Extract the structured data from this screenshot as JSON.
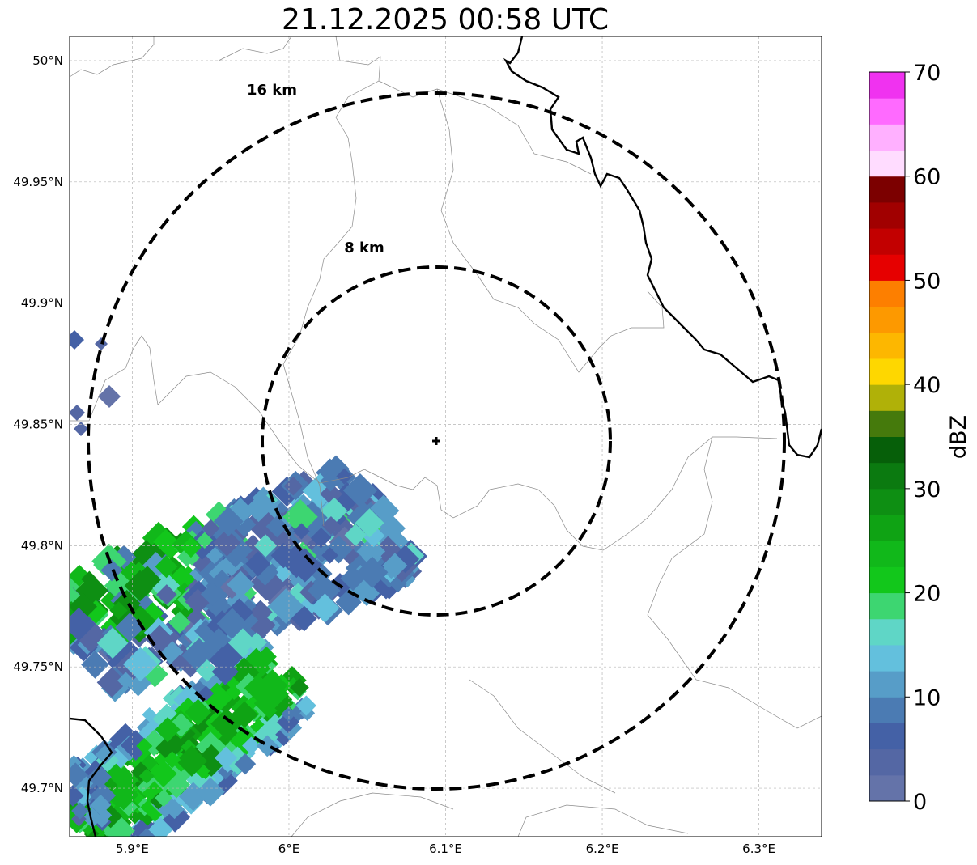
{
  "title": "21.12.2025 00:58 UTC",
  "map": {
    "lon_range": [
      5.86,
      6.34
    ],
    "lat_range": [
      49.68,
      50.01
    ],
    "lon_ticks": [
      {
        "value": 5.9,
        "label": "5.9°E"
      },
      {
        "value": 6.0,
        "label": "6°E"
      },
      {
        "value": 6.1,
        "label": "6.1°E"
      },
      {
        "value": 6.2,
        "label": "6.2°E"
      },
      {
        "value": 6.3,
        "label": "6.3°E"
      }
    ],
    "lat_ticks": [
      {
        "value": 50.0,
        "label": "50°N"
      },
      {
        "value": 49.95,
        "label": "49.95°N"
      },
      {
        "value": 49.9,
        "label": "49.9°N"
      },
      {
        "value": 49.85,
        "label": "49.85°N"
      },
      {
        "value": 49.8,
        "label": "49.8°N"
      },
      {
        "value": 49.75,
        "label": "49.75°N"
      },
      {
        "value": 49.7,
        "label": "49.7°N"
      }
    ],
    "radar_site": {
      "lon": 6.095,
      "lat": 49.843
    },
    "range_rings": [
      {
        "radius_km": 8,
        "label": "8 km"
      },
      {
        "radius_km": 16,
        "label": "16 km"
      }
    ],
    "colorbar": {
      "label": "dBZ",
      "min": 0,
      "max": 70,
      "step": 2.5,
      "tick_labels": [
        "0",
        "10",
        "20",
        "30",
        "40",
        "50",
        "60",
        "70"
      ],
      "colors": [
        "#6473a9",
        "#5467a4",
        "#4461a6",
        "#4b7bb3",
        "#579dc8",
        "#63c0dd",
        "#5fd6c6",
        "#3dd671",
        "#12c71b",
        "#11b81a",
        "#0fa314",
        "#0e8f13",
        "#0b7a10",
        "#065f09",
        "#457a0c",
        "#b0b108",
        "#fed700",
        "#fdb700",
        "#fd9900",
        "#fd7f00",
        "#e60000",
        "#c20000",
        "#a10000",
        "#7c0000",
        "#ffdcff",
        "#ffb0ff",
        "#ff6aff",
        "#f032f0"
      ]
    },
    "echo_bands": [
      {
        "name": "main-band",
        "dbz": 6
      },
      {
        "name": "lower-band",
        "dbz": 20
      }
    ]
  }
}
